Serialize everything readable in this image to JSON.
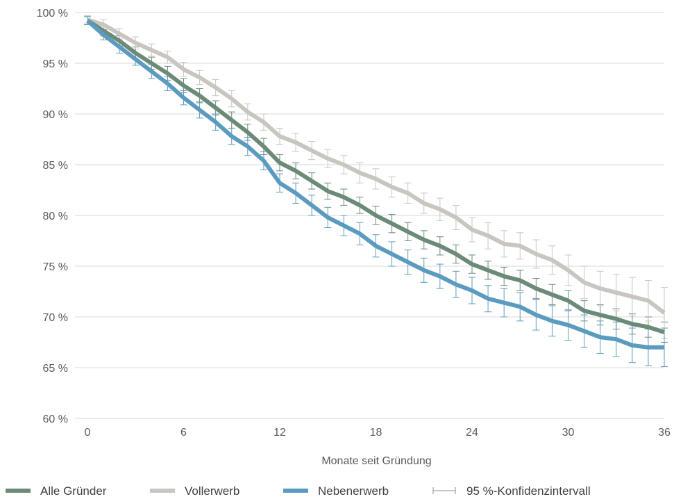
{
  "chart_data": {
    "type": "line",
    "title": "",
    "xlabel": "Monate seit Gründung",
    "ylabel": "",
    "xlim": [
      0,
      36
    ],
    "ylim": [
      60,
      100
    ],
    "x_ticks": [
      0,
      6,
      12,
      18,
      24,
      30,
      36
    ],
    "x_tick_labels": [
      "0",
      "6",
      "12",
      "18",
      "24",
      "30",
      "36"
    ],
    "y_ticks": [
      60,
      65,
      70,
      75,
      80,
      85,
      90,
      95,
      100
    ],
    "y_tick_labels": [
      "60 %",
      "65 %",
      "70 %",
      "75 %",
      "80 %",
      "85 %",
      "90 %",
      "95 %",
      "100 %"
    ],
    "grid": "horizontal",
    "legend_position": "bottom",
    "x": [
      0,
      1,
      2,
      3,
      4,
      5,
      6,
      7,
      8,
      9,
      10,
      11,
      12,
      13,
      14,
      15,
      16,
      17,
      18,
      19,
      20,
      21,
      22,
      23,
      24,
      25,
      26,
      27,
      28,
      29,
      30,
      31,
      32,
      33,
      34,
      35,
      36
    ],
    "series": [
      {
        "name": "Alle Gründer",
        "color": "#6b8a78",
        "values": [
          99.2,
          98.2,
          97.2,
          96.0,
          95.0,
          94.0,
          92.8,
          91.8,
          90.6,
          89.4,
          88.2,
          86.8,
          85.2,
          84.4,
          83.4,
          82.4,
          81.8,
          81.0,
          80.0,
          79.2,
          78.4,
          77.6,
          77.0,
          76.2,
          75.2,
          74.6,
          74.0,
          73.6,
          72.8,
          72.2,
          71.6,
          70.6,
          70.2,
          69.8,
          69.3,
          69.0,
          68.5
        ],
        "ci": [
          0.4,
          0.5,
          0.5,
          0.6,
          0.6,
          0.7,
          0.7,
          0.7,
          0.7,
          0.8,
          0.8,
          0.8,
          0.8,
          0.8,
          0.8,
          0.8,
          0.8,
          0.8,
          0.9,
          0.9,
          0.9,
          0.9,
          0.9,
          0.9,
          0.9,
          0.9,
          0.9,
          1.0,
          1.0,
          1.0,
          1.0,
          1.0,
          1.0,
          1.0,
          1.0,
          1.0,
          1.0
        ]
      },
      {
        "name": "Vollerwerb",
        "color": "#c9c5c0",
        "values": [
          99.3,
          98.8,
          97.9,
          97.0,
          96.3,
          95.6,
          94.4,
          93.6,
          92.6,
          91.5,
          90.2,
          89.2,
          87.8,
          87.2,
          86.4,
          85.6,
          85.0,
          84.2,
          83.6,
          82.8,
          82.2,
          81.2,
          80.6,
          79.8,
          78.6,
          78.0,
          77.2,
          77.0,
          76.2,
          75.6,
          74.6,
          73.4,
          72.8,
          72.4,
          72.0,
          71.6,
          70.4
        ],
        "ci": [
          0.4,
          0.5,
          0.5,
          0.6,
          0.6,
          0.6,
          0.7,
          0.7,
          0.8,
          0.8,
          0.8,
          0.8,
          0.8,
          0.9,
          0.9,
          0.9,
          0.9,
          1.0,
          1.0,
          1.0,
          1.0,
          1.0,
          1.1,
          1.2,
          1.2,
          1.3,
          1.3,
          1.3,
          1.4,
          1.4,
          1.5,
          1.6,
          1.7,
          1.8,
          1.9,
          2.0,
          2.5
        ]
      },
      {
        "name": "Nebenerwerb",
        "color": "#5b9bbf",
        "values": [
          99.2,
          97.8,
          96.6,
          95.4,
          94.2,
          93.0,
          91.6,
          90.4,
          89.2,
          87.8,
          86.8,
          85.4,
          83.2,
          82.2,
          81.0,
          79.8,
          79.0,
          78.2,
          77.0,
          76.2,
          75.4,
          74.6,
          74.0,
          73.2,
          72.6,
          71.8,
          71.4,
          71.0,
          70.2,
          69.6,
          69.2,
          68.6,
          68.0,
          67.8,
          67.2,
          67.0,
          67.0
        ],
        "ci": [
          0.4,
          0.5,
          0.6,
          0.6,
          0.7,
          0.7,
          0.7,
          0.8,
          0.8,
          0.8,
          0.9,
          0.9,
          0.9,
          1.0,
          1.0,
          1.0,
          1.0,
          1.1,
          1.1,
          1.2,
          1.2,
          1.2,
          1.2,
          1.3,
          1.3,
          1.3,
          1.4,
          1.4,
          1.5,
          1.5,
          1.5,
          1.6,
          1.6,
          1.7,
          1.7,
          1.8,
          1.9
        ]
      }
    ],
    "legend": [
      {
        "label": "Alle Gründer",
        "kind": "line",
        "color": "#6b8a78"
      },
      {
        "label": "Vollerwerb",
        "kind": "line",
        "color": "#c9c5c0"
      },
      {
        "label": "Nebenerwerb",
        "kind": "line",
        "color": "#5b9bbf"
      },
      {
        "label": "95 %-Konfidenzintervall",
        "kind": "errorbar",
        "color": "#8c8c8c"
      }
    ],
    "colors": {
      "grid": "#d9d9d9",
      "tick_text": "#595959"
    }
  }
}
